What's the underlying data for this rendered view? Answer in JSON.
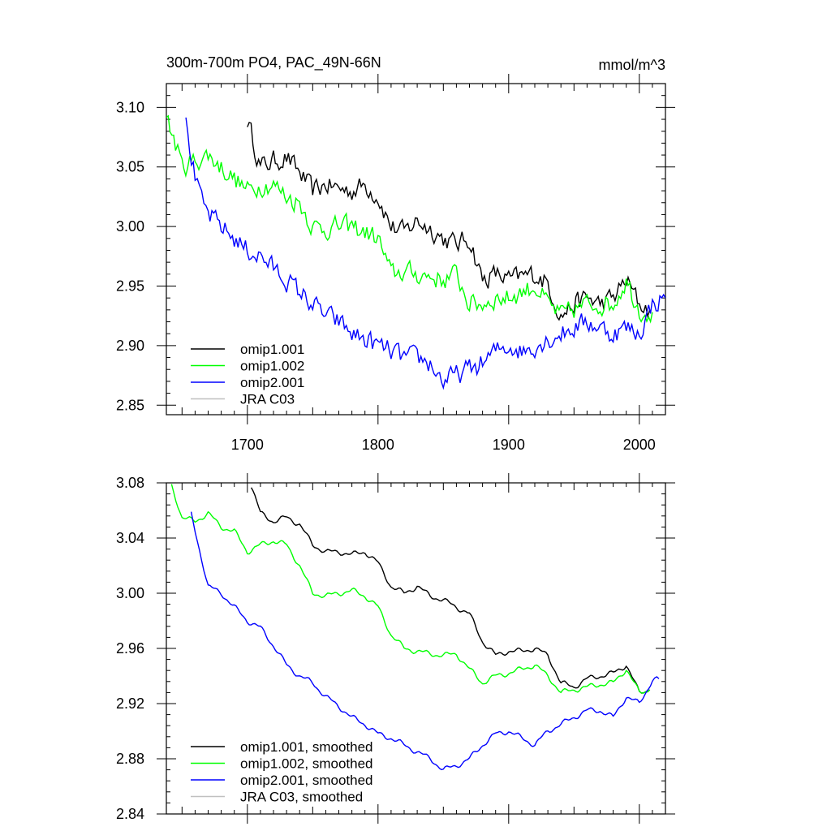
{
  "figure": {
    "title_left": "300m-700m PO4, PAC_49N-66N",
    "title_right": "mmol/m^3"
  },
  "chart_data": [
    {
      "type": "line",
      "title": "300m-700m PO4, PAC_49N-66N",
      "units": "mmol/m^3",
      "xlim": [
        1638,
        2020
      ],
      "ylim": [
        2.842,
        3.12
      ],
      "x_ticks": [
        1700,
        1800,
        1900,
        2000
      ],
      "x_tick_labels": [
        "1700",
        "1800",
        "1900",
        "2000"
      ],
      "y_ticks": [
        2.85,
        2.9,
        2.95,
        3.0,
        3.05,
        3.1
      ],
      "y_tick_labels": [
        "2.85",
        "2.90",
        "2.95",
        "3.00",
        "3.05",
        "3.10"
      ],
      "grid": false,
      "legend_position": "bottom-left",
      "series": [
        {
          "name": "omip1.001",
          "color": "#000000",
          "x": [
            1700,
            1710,
            1720,
            1730,
            1740,
            1750,
            1760,
            1770,
            1780,
            1790,
            1800,
            1810,
            1820,
            1830,
            1840,
            1850,
            1860,
            1870,
            1880,
            1890,
            1900,
            1910,
            1920,
            1930,
            1940,
            1950,
            1960,
            1970,
            1980,
            1990,
            2000,
            2008
          ],
          "y": [
            3.09,
            3.05,
            3.055,
            3.058,
            3.045,
            3.03,
            3.035,
            3.032,
            3.03,
            3.035,
            3.025,
            3.0,
            2.995,
            3.005,
            2.998,
            2.99,
            2.985,
            2.99,
            2.955,
            2.96,
            2.955,
            2.958,
            2.96,
            2.952,
            2.925,
            2.935,
            2.94,
            2.935,
            2.94,
            2.955,
            2.935,
            2.93
          ],
          "style": "noisy"
        },
        {
          "name": "omip1.002",
          "color": "#00ff00",
          "x": [
            1638,
            1645,
            1650,
            1660,
            1670,
            1680,
            1690,
            1700,
            1710,
            1720,
            1730,
            1740,
            1750,
            1760,
            1770,
            1780,
            1790,
            1800,
            1810,
            1820,
            1830,
            1840,
            1850,
            1860,
            1870,
            1880,
            1890,
            1900,
            1910,
            1920,
            1930,
            1940,
            1950,
            1960,
            1970,
            1980,
            1990,
            2000,
            2010
          ],
          "y": [
            3.09,
            3.07,
            3.05,
            3.055,
            3.06,
            3.05,
            3.04,
            3.03,
            3.035,
            3.035,
            3.025,
            3.02,
            3.0,
            2.998,
            3.0,
            3.0,
            2.995,
            2.99,
            2.96,
            2.962,
            2.96,
            2.958,
            2.955,
            2.96,
            2.935,
            2.935,
            2.94,
            2.94,
            2.945,
            2.95,
            2.935,
            2.925,
            2.93,
            2.935,
            2.935,
            2.935,
            2.955,
            2.93,
            2.928
          ],
          "style": "noisy"
        },
        {
          "name": "omip2.001",
          "color": "#0000ff",
          "x": [
            1653,
            1660,
            1665,
            1670,
            1680,
            1690,
            1700,
            1710,
            1720,
            1730,
            1740,
            1750,
            1760,
            1770,
            1780,
            1790,
            1800,
            1810,
            1820,
            1830,
            1840,
            1850,
            1860,
            1870,
            1880,
            1890,
            1900,
            1910,
            1920,
            1930,
            1940,
            1950,
            1960,
            1970,
            1980,
            1990,
            2000,
            2010,
            2020
          ],
          "y": [
            3.085,
            3.04,
            3.02,
            3.01,
            3.0,
            2.99,
            2.98,
            2.975,
            2.965,
            2.955,
            2.945,
            2.935,
            2.925,
            2.92,
            2.91,
            2.905,
            2.9,
            2.895,
            2.89,
            2.89,
            2.885,
            2.87,
            2.875,
            2.88,
            2.885,
            2.895,
            2.9,
            2.895,
            2.9,
            2.905,
            2.91,
            2.915,
            2.92,
            2.915,
            2.91,
            2.915,
            2.91,
            2.935,
            2.94
          ],
          "style": "noisy"
        },
        {
          "name": "JRA C03",
          "color": "#c0c0c0",
          "x": [],
          "y": []
        }
      ]
    },
    {
      "type": "line",
      "xlim": [
        1638,
        2020
      ],
      "ylim": [
        2.84,
        3.08
      ],
      "x_ticks": [
        1700,
        1800,
        1900,
        2000
      ],
      "x_tick_labels": [],
      "y_ticks": [
        2.84,
        2.88,
        2.92,
        2.96,
        3.0,
        3.04,
        3.08
      ],
      "y_tick_labels": [
        "2.84",
        "2.88",
        "2.92",
        "2.96",
        "3.00",
        "3.04",
        "3.08"
      ],
      "grid": false,
      "legend_position": "bottom-left",
      "series": [
        {
          "name": "omip1.001, smoothed",
          "color": "#000000",
          "x": [
            1703,
            1710,
            1720,
            1730,
            1740,
            1750,
            1760,
            1770,
            1780,
            1790,
            1800,
            1810,
            1820,
            1830,
            1840,
            1850,
            1860,
            1870,
            1880,
            1890,
            1900,
            1910,
            1920,
            1930,
            1940,
            1950,
            1960,
            1970,
            1980,
            1990,
            2000,
            2008
          ],
          "y": [
            3.078,
            3.058,
            3.052,
            3.055,
            3.05,
            3.035,
            3.03,
            3.03,
            3.028,
            3.03,
            3.022,
            3.005,
            3.0,
            3.005,
            2.998,
            2.995,
            2.99,
            2.985,
            2.965,
            2.955,
            2.958,
            2.958,
            2.96,
            2.955,
            2.935,
            2.932,
            2.938,
            2.94,
            2.942,
            2.948,
            2.928,
            2.93
          ],
          "style": "smooth"
        },
        {
          "name": "omip1.002, smoothed",
          "color": "#00ff00",
          "x": [
            1642,
            1650,
            1660,
            1670,
            1680,
            1690,
            1700,
            1710,
            1720,
            1730,
            1740,
            1750,
            1760,
            1770,
            1780,
            1790,
            1800,
            1810,
            1820,
            1830,
            1840,
            1850,
            1860,
            1870,
            1880,
            1890,
            1900,
            1910,
            1920,
            1930,
            1940,
            1950,
            1960,
            1970,
            1980,
            1990,
            2000,
            2008
          ],
          "y": [
            3.078,
            3.055,
            3.052,
            3.058,
            3.048,
            3.045,
            3.03,
            3.035,
            3.038,
            3.035,
            3.02,
            3.0,
            2.998,
            3.0,
            3.002,
            2.998,
            2.99,
            2.97,
            2.96,
            2.958,
            2.956,
            2.955,
            2.956,
            2.945,
            2.935,
            2.94,
            2.942,
            2.945,
            2.948,
            2.94,
            2.928,
            2.93,
            2.932,
            2.934,
            2.935,
            2.945,
            2.928,
            2.93
          ],
          "style": "smooth"
        },
        {
          "name": "omip2.001, smoothed",
          "color": "#0000ff",
          "x": [
            1657,
            1665,
            1670,
            1680,
            1690,
            1700,
            1710,
            1720,
            1730,
            1740,
            1750,
            1760,
            1770,
            1780,
            1790,
            1800,
            1810,
            1820,
            1830,
            1840,
            1850,
            1860,
            1870,
            1880,
            1890,
            1900,
            1910,
            1920,
            1930,
            1940,
            1950,
            1960,
            1970,
            1980,
            1990,
            2000,
            2010,
            2015
          ],
          "y": [
            3.057,
            3.025,
            3.005,
            3.0,
            2.99,
            2.98,
            2.975,
            2.962,
            2.948,
            2.94,
            2.935,
            2.925,
            2.918,
            2.91,
            2.905,
            2.898,
            2.895,
            2.89,
            2.885,
            2.88,
            2.872,
            2.875,
            2.88,
            2.89,
            2.898,
            2.9,
            2.895,
            2.89,
            2.9,
            2.905,
            2.91,
            2.915,
            2.915,
            2.91,
            2.925,
            2.92,
            2.937,
            2.938
          ],
          "style": "smooth"
        },
        {
          "name": "JRA C03, smoothed",
          "color": "#c0c0c0",
          "x": [],
          "y": []
        }
      ]
    }
  ]
}
